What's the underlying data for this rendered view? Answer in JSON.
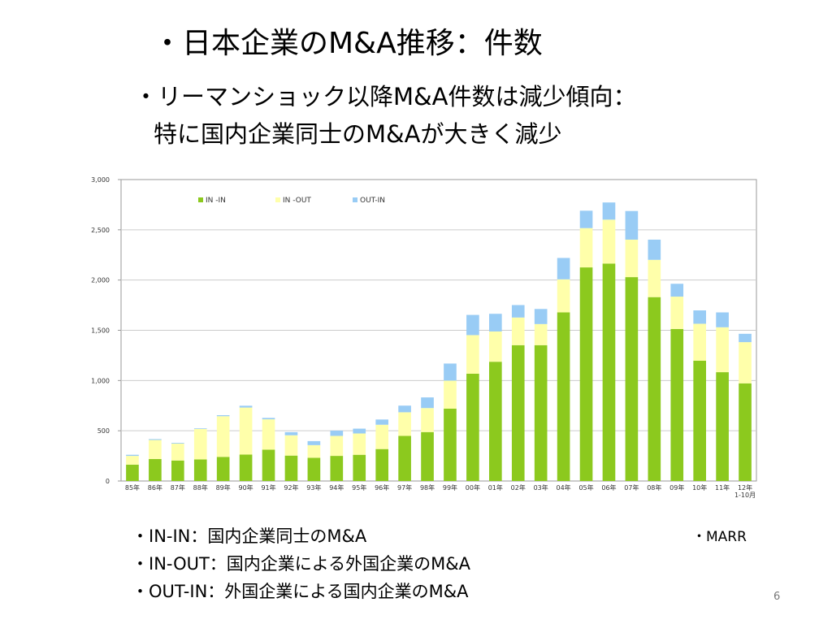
{
  "slide": {
    "title": "・日本企業のM&A推移：件数",
    "subtitle_line1": "・リーマンショック以降M&A件数は減少傾向：",
    "subtitle_line2": "特に国内企業同士のM&Aが大きく減少",
    "notes": [
      "・IN-IN：国内企業同士のM&A",
      "・IN-OUT：国内企業による外国企業のM&A",
      "・OUT-IN：外国企業による国内企業のM&A"
    ],
    "source": "・MARR",
    "page_number": "6"
  },
  "colors": {
    "in_in": "#8cc91e",
    "in_out": "#ffffaa",
    "out_in": "#99ccf5",
    "grid": "#cccccc",
    "axis": "#999999"
  },
  "chart_data": {
    "type": "bar",
    "stacked": true,
    "categories": [
      "85年",
      "86年",
      "87年",
      "88年",
      "89年",
      "90年",
      "91年",
      "92年",
      "93年",
      "94年",
      "95年",
      "96年",
      "97年",
      "98年",
      "99年",
      "00年",
      "01年",
      "02年",
      "03年",
      "04年",
      "05年",
      "06年",
      "07年",
      "08年",
      "09年",
      "10年",
      "11年",
      "12年 1-10月"
    ],
    "series": [
      {
        "name": "IN -IN",
        "color": "#8cc91e",
        "values": [
          163,
          219,
          204,
          215,
          240,
          263,
          312,
          253,
          231,
          250,
          261,
          318,
          449,
          487,
          720,
          1068,
          1187,
          1352,
          1352,
          1678,
          2126,
          2164,
          2029,
          1830,
          1513,
          1197,
          1083,
          972
        ]
      },
      {
        "name": "IN -OUT",
        "color": "#ffffaa",
        "values": [
          87,
          189,
          169,
          303,
          405,
          468,
          302,
          202,
          126,
          199,
          212,
          242,
          235,
          239,
          279,
          384,
          301,
          275,
          210,
          329,
          391,
          437,
          373,
          371,
          322,
          368,
          447,
          410
        ]
      },
      {
        "name": "OUT-IN",
        "color": "#99ccf5",
        "values": [
          11,
          9,
          7,
          6,
          10,
          18,
          14,
          31,
          40,
          52,
          48,
          52,
          66,
          106,
          170,
          201,
          176,
          124,
          150,
          213,
          173,
          171,
          285,
          201,
          128,
          133,
          148,
          83
        ]
      }
    ],
    "ylim": [
      0,
      3000
    ],
    "yticks": [
      0,
      500,
      1000,
      1500,
      2000,
      2500,
      3000
    ],
    "ytick_labels": [
      "0",
      "500",
      "1,000",
      "1,500",
      "2,000",
      "2,500",
      "3,000"
    ],
    "grid": true,
    "legend": "top-left"
  }
}
